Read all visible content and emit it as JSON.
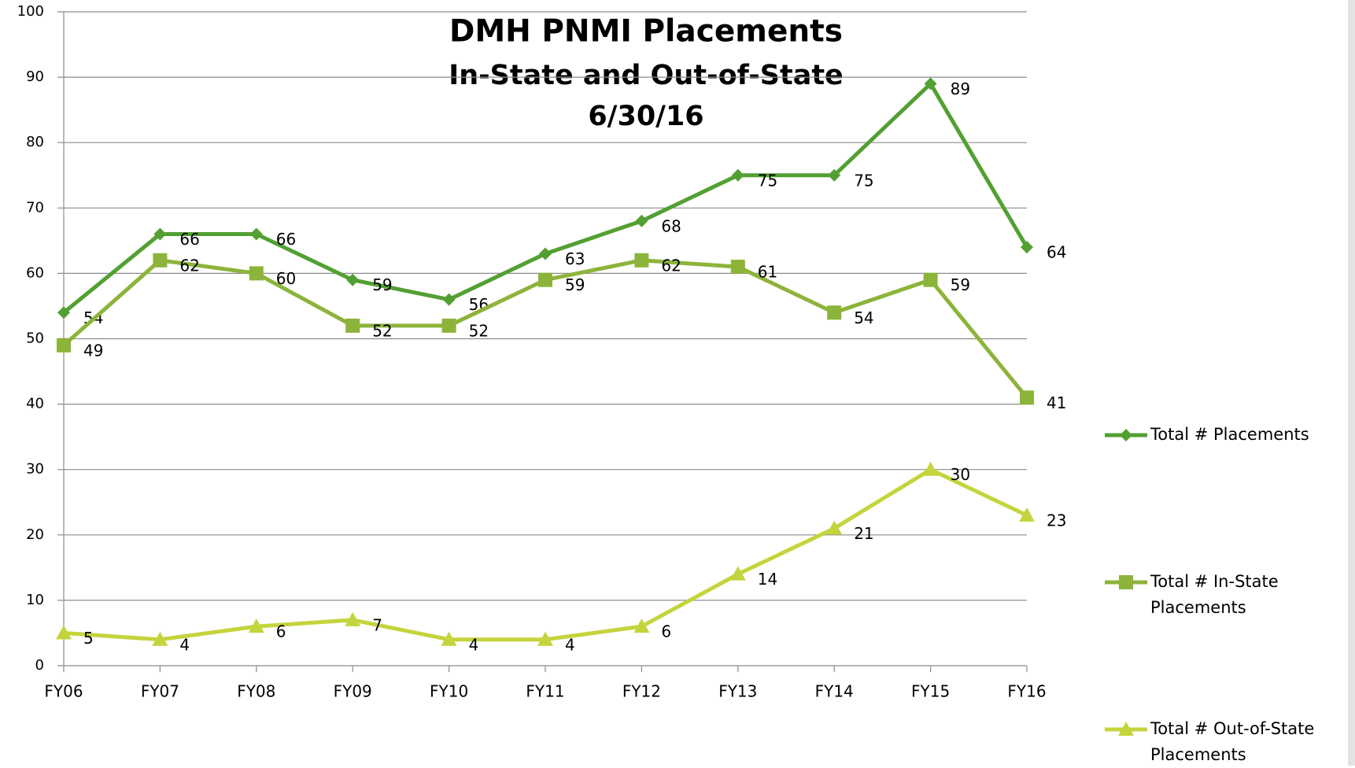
{
  "chart_data": {
    "type": "line",
    "title": [
      "DMH PNMI Placements",
      "In-State and Out-of-State",
      "6/30/16"
    ],
    "categories": [
      "FY06",
      "FY07",
      "FY08",
      "FY09",
      "FY10",
      "FY11",
      "FY12",
      "FY13",
      "FY14",
      "FY15",
      "FY16"
    ],
    "series": [
      {
        "name": "Total # Placements",
        "color": "#52a032",
        "marker": "diamond",
        "values": [
          54,
          66,
          66,
          59,
          56,
          63,
          68,
          75,
          75,
          89,
          64
        ]
      },
      {
        "name": "Total # In-State Placements",
        "color": "#8cb43a",
        "marker": "square",
        "values": [
          49,
          62,
          60,
          52,
          52,
          59,
          62,
          61,
          54,
          59,
          41
        ]
      },
      {
        "name": "Total # Out-of-State Placements",
        "color": "#c4d43c",
        "marker": "triangle",
        "values": [
          5,
          4,
          6,
          7,
          4,
          4,
          6,
          14,
          21,
          30,
          23
        ]
      }
    ],
    "ylim": [
      0,
      100
    ],
    "yticks": [
      0,
      10,
      20,
      30,
      40,
      50,
      60,
      70,
      80,
      90,
      100
    ],
    "grid": true,
    "legend": "right"
  }
}
